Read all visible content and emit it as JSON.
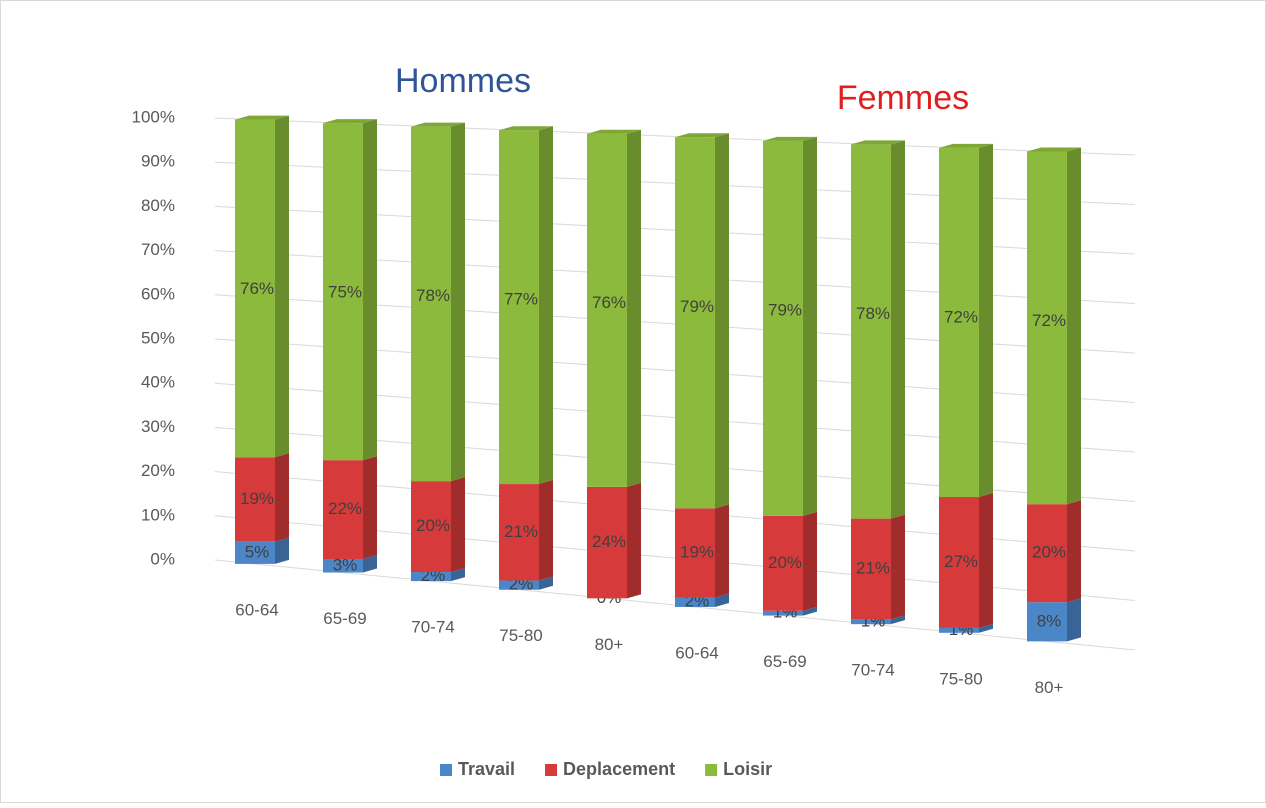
{
  "chart_data": {
    "type": "bar",
    "stacked": true,
    "annotations": [
      "Hommes",
      "Femmes"
    ],
    "categories": [
      "60-64",
      "65-69",
      "70-74",
      "75-80",
      "80+",
      "60-64",
      "65-69",
      "70-74",
      "75-80",
      "80+"
    ],
    "series": [
      {
        "name": "Travail",
        "color": "#4a86c8",
        "values": [
          5,
          3,
          2,
          2,
          0,
          2,
          1,
          1,
          1,
          8
        ],
        "value_labels": [
          "5%",
          "3%",
          "2%",
          "2%",
          "0%",
          "2%",
          "1%",
          "1%",
          "1%",
          "8%"
        ]
      },
      {
        "name": "Deplacement",
        "color": "#d63a3a",
        "values": [
          19,
          22,
          20,
          21,
          24,
          19,
          20,
          21,
          27,
          20
        ],
        "value_labels": [
          "19%",
          "22%",
          "20%",
          "21%",
          "24%",
          "19%",
          "20%",
          "21%",
          "27%",
          "20%"
        ]
      },
      {
        "name": "Loisir",
        "color": "#8cba3c",
        "values": [
          76,
          75,
          78,
          77,
          76,
          79,
          79,
          78,
          72,
          72
        ],
        "value_labels": [
          "76%",
          "75%",
          "78%",
          "77%",
          "76%",
          "79%",
          "79%",
          "78%",
          "72%",
          "72%"
        ]
      }
    ],
    "ylim": [
      0,
      100
    ],
    "yticks": [
      {
        "value": 0,
        "label": "0%"
      },
      {
        "value": 10,
        "label": "10%"
      },
      {
        "value": 20,
        "label": "20%"
      },
      {
        "value": 30,
        "label": "30%"
      },
      {
        "value": 40,
        "label": "40%"
      },
      {
        "value": 50,
        "label": "50%"
      },
      {
        "value": 60,
        "label": "60%"
      },
      {
        "value": 70,
        "label": "70%"
      },
      {
        "value": 80,
        "label": "80%"
      },
      {
        "value": 90,
        "label": "90%"
      },
      {
        "value": 100,
        "label": "100%"
      }
    ],
    "grid": true,
    "legend": "bottom"
  }
}
